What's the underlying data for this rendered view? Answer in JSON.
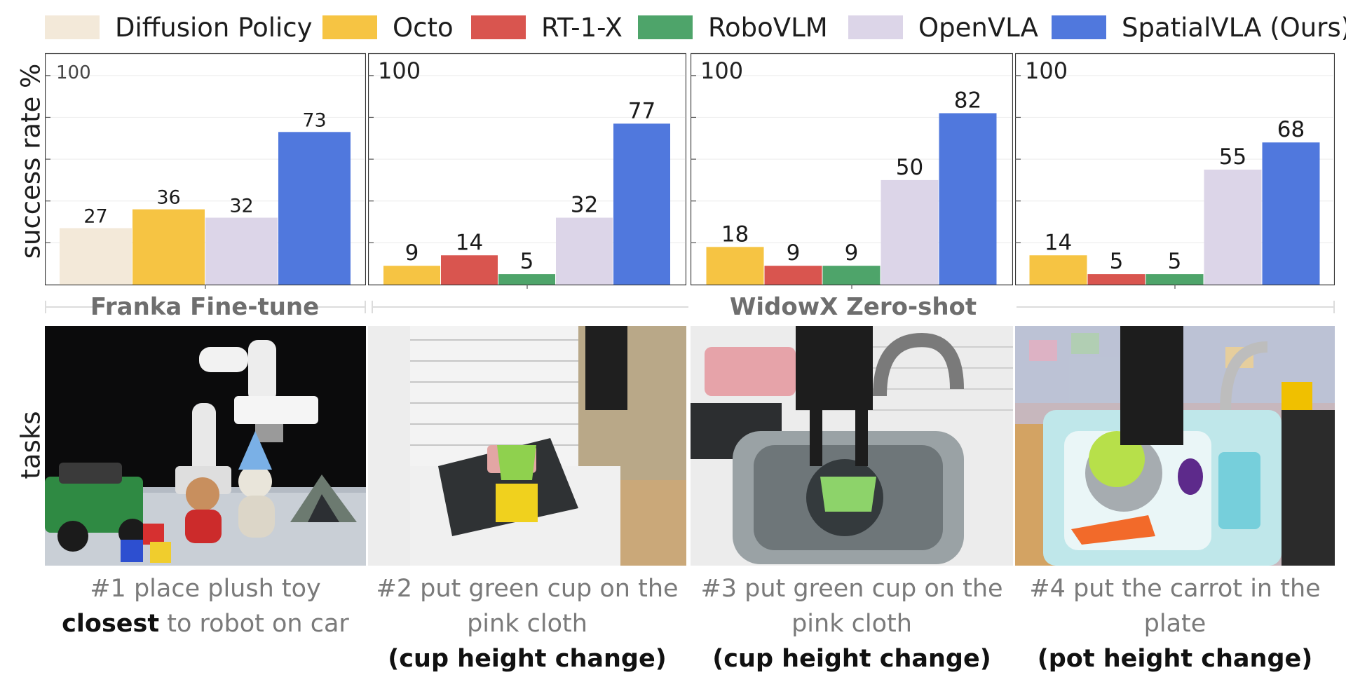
{
  "legend": [
    {
      "name": "Diffusion Policy",
      "color": "#f3e9d9"
    },
    {
      "name": "Octo",
      "color": "#f6c443"
    },
    {
      "name": "RT-1-X",
      "color": "#d9554f"
    },
    {
      "name": "RoboVLM",
      "color": "#4ea46a"
    },
    {
      "name": "OpenVLA",
      "color": "#dcd5e8"
    },
    {
      "name": "SpatialVLA (Ours)",
      "color": "#5078dd"
    }
  ],
  "chart_data": [
    {
      "type": "bar",
      "ylabel": "success rate %",
      "ylim": [
        0,
        110
      ],
      "top_tick_label": "100",
      "categories": [
        "Diffusion Policy",
        "Octo",
        "OpenVLA",
        "SpatialVLA (Ours)"
      ],
      "values": [
        27,
        36,
        32,
        73
      ],
      "value_labels": [
        "27",
        "36",
        "32",
        "73"
      ]
    },
    {
      "type": "bar",
      "ylim": [
        0,
        110
      ],
      "top_tick_label": "100",
      "categories": [
        "Octo",
        "RT-1-X",
        "RoboVLM",
        "OpenVLA",
        "SpatialVLA (Ours)"
      ],
      "values": [
        9,
        14,
        5,
        32,
        77
      ],
      "value_labels": [
        "9",
        "14",
        "5",
        "32",
        "77"
      ]
    },
    {
      "type": "bar",
      "ylim": [
        0,
        110
      ],
      "top_tick_label": "100",
      "categories": [
        "Octo",
        "RT-1-X",
        "RoboVLM",
        "OpenVLA",
        "SpatialVLA (Ours)"
      ],
      "values": [
        18,
        9,
        9,
        50,
        82
      ],
      "value_labels": [
        "18",
        "9",
        "9",
        "50",
        "82"
      ]
    },
    {
      "type": "bar",
      "ylim": [
        0,
        110
      ],
      "top_tick_label": "100",
      "categories": [
        "Octo",
        "RT-1-X",
        "RoboVLM",
        "OpenVLA",
        "SpatialVLA (Ours)"
      ],
      "values": [
        14,
        5,
        5,
        55,
        68
      ],
      "value_labels": [
        "14",
        "5",
        "5",
        "55",
        "68"
      ]
    }
  ],
  "groups": {
    "franka": "Franka Fine-tune",
    "widowx": "WidowX Zero-shot"
  },
  "tasks_label": "tasks",
  "tasks": [
    {
      "line1": "#1 place plush toy",
      "line2_bold": "closest",
      "line2_rest": " to robot on car",
      "line3_bold": ""
    },
    {
      "line1": "#2 put green cup on the",
      "line2_bold": "",
      "line2_rest": "pink cloth",
      "line3_bold": "(cup height change)"
    },
    {
      "line1": "#3 put green cup on the",
      "line2_bold": "",
      "line2_rest": "pink cloth",
      "line3_bold": "(cup height change)"
    },
    {
      "line1": "#4 put the carrot in the",
      "line2_bold": "",
      "line2_rest": "plate",
      "line3_bold": "(pot height change)"
    }
  ]
}
